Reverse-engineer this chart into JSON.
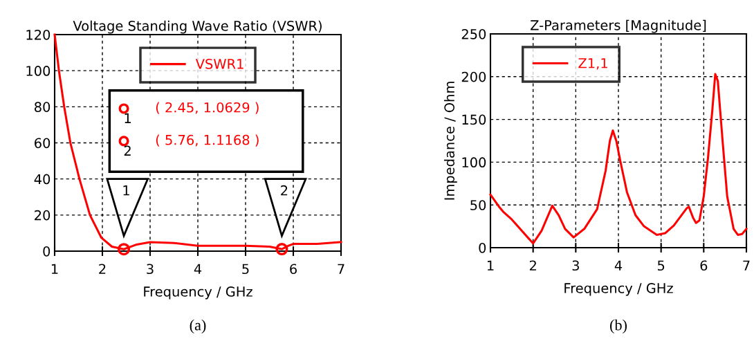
{
  "chart_data": [
    {
      "type": "line",
      "title": "Voltage Standing Wave Ratio (VSWR)",
      "xlabel": "Frequency / GHz",
      "x": [
        1,
        1.09,
        1.2,
        1.33,
        1.52,
        1.74,
        1.98,
        2.2,
        2.45,
        2.7,
        3,
        3.5,
        4,
        4.5,
        5,
        5.5,
        5.76,
        5.9,
        6,
        6.5,
        7
      ],
      "series": [
        {
          "name": "VSWR1",
          "color": "#ff0000",
          "values": [
            120,
            100,
            80,
            60,
            40,
            20,
            7.4,
            2.5,
            1.0629,
            3.5,
            5,
            4.5,
            3,
            3,
            3,
            2.5,
            1.1168,
            3,
            4,
            4,
            5
          ]
        },
        {
          "type": "scatter",
          "color": "#ff0000",
          "marker": "circle",
          "x": [
            2.45,
            5.76
          ],
          "values": [
            1.0629,
            1.1168
          ]
        }
      ],
      "xlim": [
        1,
        7
      ],
      "xticks": [
        1,
        2,
        3,
        4,
        5,
        6,
        7
      ],
      "ylim": [
        0,
        120
      ],
      "yticks": [
        0,
        20,
        40,
        60,
        80,
        100,
        120
      ],
      "grid": true,
      "legend": "top",
      "annotations": [
        "1",
        "2",
        "( 2.45, 1.0629 )",
        "( 5.76, 1.1168 )",
        "(a)"
      ]
    },
    {
      "type": "line",
      "title": "Z-Parameters [Magnitude]",
      "xlabel": "Frequency / GHz",
      "ylabel": "Impedance / Ohm",
      "x": [
        1,
        1.2,
        1.3,
        1.5,
        2,
        2.2,
        2.45,
        2.6,
        2.75,
        2.95,
        3.2,
        3.5,
        3.7,
        3.8,
        3.87,
        3.95,
        4.05,
        4.2,
        4.4,
        4.6,
        4.9,
        5.1,
        5.3,
        5.6,
        5.65,
        5.75,
        5.82,
        5.9,
        6.0,
        6.1,
        6.2,
        6.27,
        6.33,
        6.45,
        6.55,
        6.7,
        6.8,
        6.9,
        7
      ],
      "series": [
        {
          "name": "Z1,1",
          "color": "#ff0000",
          "values": [
            62,
            48,
            42,
            33,
            5,
            20,
            49,
            38,
            22,
            12,
            22,
            45,
            90,
            125,
            137,
            125,
            100,
            65,
            38,
            25,
            15,
            17,
            26,
            46,
            48,
            35,
            29,
            32,
            60,
            105,
            160,
            203,
            195,
            120,
            60,
            22,
            15,
            16,
            22
          ]
        }
      ],
      "xlim": [
        1,
        7
      ],
      "xticks": [
        1,
        2,
        3,
        4,
        5,
        6,
        7
      ],
      "ylim": [
        0,
        250
      ],
      "yticks": [
        0,
        50,
        100,
        150,
        200,
        250
      ],
      "grid": true,
      "legend": "top left",
      "annotations": [
        "(b)"
      ]
    }
  ]
}
